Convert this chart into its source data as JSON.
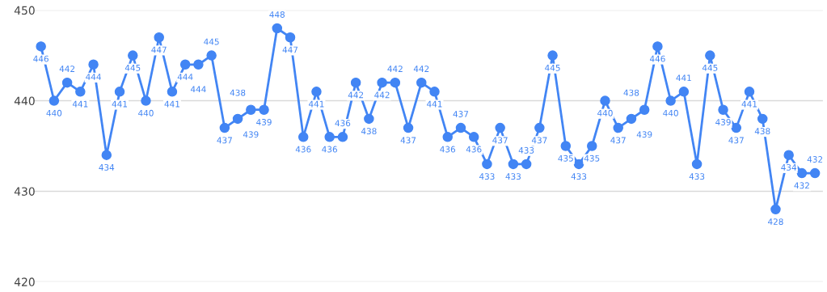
{
  "chart_data": {
    "type": "line",
    "categories": [
      null,
      null,
      null,
      null,
      null,
      null,
      null,
      null,
      null,
      null,
      null,
      null,
      null,
      null,
      null,
      null,
      null,
      null,
      null,
      null,
      null,
      null,
      null,
      null,
      null,
      null,
      null,
      null,
      null,
      null,
      null,
      null,
      null,
      null,
      null,
      null,
      null,
      null,
      null,
      null,
      null,
      null,
      null,
      null,
      null,
      null,
      null,
      null,
      null,
      null,
      null,
      null,
      null,
      null,
      null,
      null,
      null,
      null,
      null,
      null
    ],
    "series": [
      {
        "color": "#4285f4",
        "values": [
          446,
          440,
          442,
          441,
          444,
          434,
          441,
          445,
          440,
          447,
          441,
          444,
          444,
          445,
          437,
          438,
          439,
          439,
          448,
          447,
          436,
          441,
          436,
          436,
          442,
          438,
          442,
          442,
          437,
          442,
          441,
          436,
          437,
          436,
          433,
          437,
          433,
          433,
          437,
          445,
          435,
          433,
          435,
          440,
          437,
          438,
          439,
          446,
          440,
          441,
          433,
          445,
          439,
          437,
          441,
          438,
          428,
          434,
          432,
          432
        ]
      }
    ],
    "ylim": [
      420,
      450
    ],
    "yticks": [
      420,
      430,
      440,
      450
    ],
    "grid": "y",
    "marker": "circle",
    "line_style": "solid",
    "data_labels": true
  }
}
